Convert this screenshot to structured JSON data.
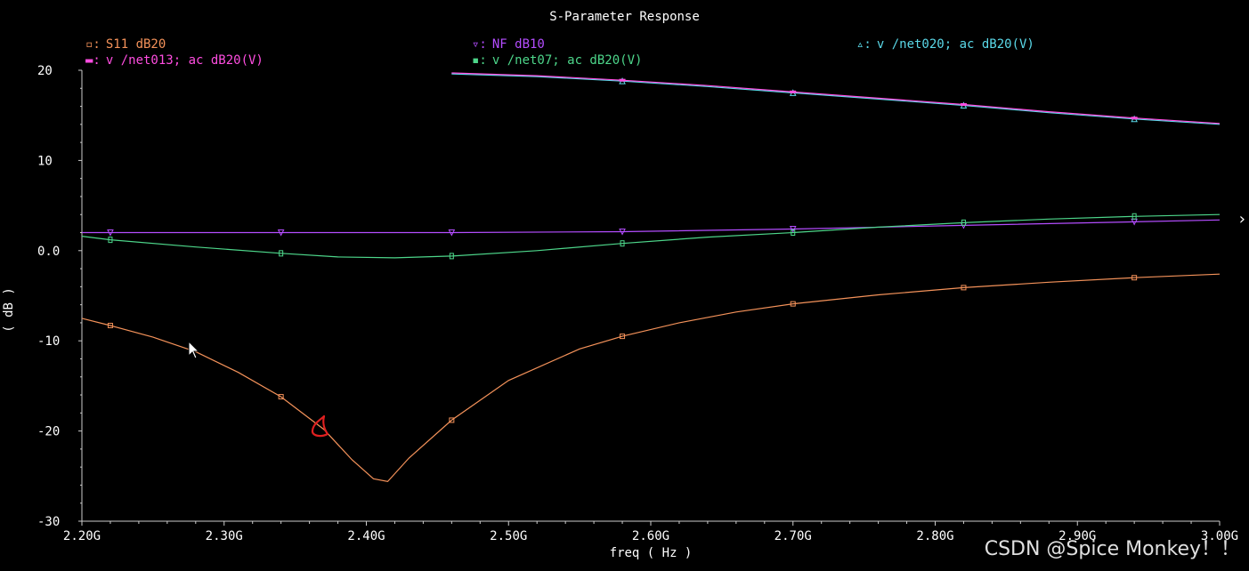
{
  "chart_data": {
    "type": "line",
    "title": "S-Parameter Response",
    "xlabel": "freq ( Hz )",
    "ylabel": "( dB )",
    "xlim": [
      2.2,
      3.0
    ],
    "ylim": [
      -30,
      20
    ],
    "x_ticks": [
      {
        "value": 2.2,
        "label": "2.20G"
      },
      {
        "value": 2.3,
        "label": "2.30G"
      },
      {
        "value": 2.4,
        "label": "2.40G"
      },
      {
        "value": 2.5,
        "label": "2.50G"
      },
      {
        "value": 2.6,
        "label": "2.60G"
      },
      {
        "value": 2.7,
        "label": "2.70G"
      },
      {
        "value": 2.8,
        "label": "2.80G"
      },
      {
        "value": 2.9,
        "label": "2.90G"
      },
      {
        "value": 3.0,
        "label": "3.00G"
      }
    ],
    "y_ticks": [
      {
        "value": 20,
        "label": "20"
      },
      {
        "value": 10,
        "label": "10"
      },
      {
        "value": 0,
        "label": "0.0"
      },
      {
        "value": -10,
        "label": "-10"
      },
      {
        "value": -20,
        "label": "-20"
      },
      {
        "value": -30,
        "label": "-30"
      }
    ],
    "grid": false,
    "series": [
      {
        "name": "S11 dB20",
        "color": "#f4925a",
        "marker": "square",
        "x": [
          2.2,
          2.22,
          2.25,
          2.28,
          2.31,
          2.34,
          2.37,
          2.39,
          2.405,
          2.415,
          2.43,
          2.46,
          2.5,
          2.55,
          2.58,
          2.62,
          2.66,
          2.7,
          2.76,
          2.82,
          2.88,
          2.94,
          3.0
        ],
        "y": [
          -7.5,
          -8.3,
          -9.6,
          -11.2,
          -13.5,
          -16.2,
          -19.8,
          -23.2,
          -25.3,
          -25.6,
          -23.0,
          -18.8,
          -14.4,
          -10.9,
          -9.5,
          -8.0,
          -6.8,
          -5.9,
          -4.9,
          -4.1,
          -3.5,
          -3.0,
          -2.6
        ],
        "marker_x": [
          2.22,
          2.34,
          2.46,
          2.58,
          2.7,
          2.82,
          2.94
        ]
      },
      {
        "name": "NF dB10",
        "color": "#b44dff",
        "marker": "triangle-down",
        "x": [
          2.2,
          2.22,
          2.34,
          2.46,
          2.58,
          2.7,
          2.82,
          2.94,
          3.0
        ],
        "y": [
          2.0,
          2.0,
          2.0,
          2.0,
          2.1,
          2.4,
          2.8,
          3.2,
          3.4
        ],
        "marker_x": [
          2.22,
          2.34,
          2.46,
          2.58,
          2.7,
          2.82,
          2.94
        ]
      },
      {
        "name": "v /net020; ac dB20(V)",
        "color": "#5ad8e8",
        "marker": "triangle-up",
        "x": [
          2.46,
          2.52,
          2.58,
          2.64,
          2.7,
          2.76,
          2.82,
          2.88,
          2.94,
          3.0
        ],
        "y": [
          19.6,
          19.3,
          18.8,
          18.2,
          17.5,
          16.8,
          16.1,
          15.3,
          14.6,
          14.0
        ],
        "marker_x": [
          2.58,
          2.7,
          2.82,
          2.94
        ]
      },
      {
        "name": "v /net013; ac dB20(V)",
        "color": "#ff4de0",
        "marker": "bar",
        "x": [
          2.46,
          2.52,
          2.58,
          2.64,
          2.7,
          2.76,
          2.82,
          2.88,
          2.94,
          3.0
        ],
        "y": [
          19.7,
          19.4,
          18.9,
          18.3,
          17.6,
          16.9,
          16.2,
          15.4,
          14.7,
          14.1
        ],
        "marker_x": [
          2.58,
          2.7,
          2.82,
          2.94
        ]
      },
      {
        "name": "v /net07; ac dB20(V)",
        "color": "#4dd68a",
        "marker": "bar-square",
        "x": [
          2.2,
          2.22,
          2.28,
          2.34,
          2.38,
          2.42,
          2.46,
          2.52,
          2.58,
          2.64,
          2.7,
          2.76,
          2.82,
          2.88,
          2.94,
          3.0
        ],
        "y": [
          1.6,
          1.2,
          0.4,
          -0.3,
          -0.7,
          -0.8,
          -0.6,
          0.0,
          0.8,
          1.5,
          2.0,
          2.6,
          3.1,
          3.5,
          3.8,
          4.0
        ],
        "marker_x": [
          2.22,
          2.34,
          2.46,
          2.58,
          2.7,
          2.82,
          2.94
        ]
      }
    ]
  },
  "colors": {
    "axis": "#cccccc",
    "text": "#ffffff",
    "background": "#000000",
    "annotation": "#e02020"
  },
  "watermark": "CSDN @Spice Monkey！！",
  "side_arrow": "›"
}
